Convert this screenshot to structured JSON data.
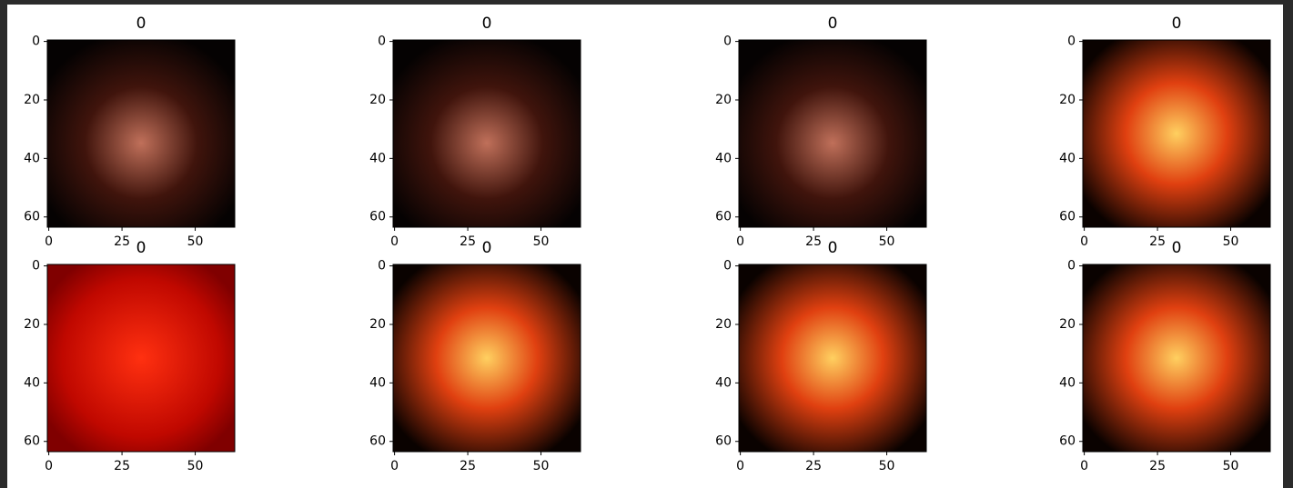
{
  "figure": {
    "panels": [
      {
        "title": "0"
      },
      {
        "title": "0"
      },
      {
        "title": "0"
      },
      {
        "title": "0"
      },
      {
        "title": "0"
      },
      {
        "title": "0"
      },
      {
        "title": "0"
      },
      {
        "title": "0"
      }
    ],
    "xlim": [
      -0.5,
      63.5
    ],
    "ylim": [
      63.5,
      -0.5
    ],
    "xticks": [
      0,
      25,
      50
    ],
    "yticks": [
      0,
      20,
      40,
      60
    ]
  }
}
